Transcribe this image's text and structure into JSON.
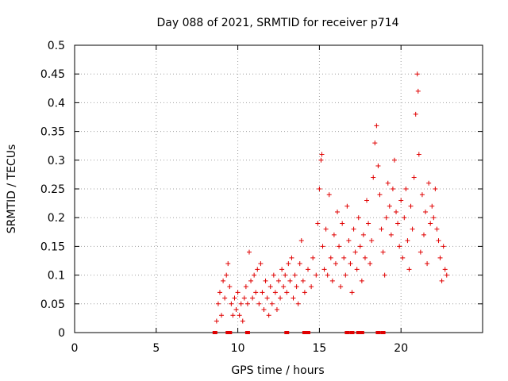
{
  "chart_data": {
    "type": "scatter",
    "title": "Day 088 of 2021, SRMTID for receiver p714",
    "xlabel": "GPS time / hours",
    "ylabel": "SRMTID / TECUs",
    "xlim": [
      0,
      25
    ],
    "ylim": [
      0,
      0.5
    ],
    "x_ticks": [
      0,
      5,
      10,
      15,
      20
    ],
    "x_tick_labels": [
      "0",
      "5",
      "10",
      "15",
      "20"
    ],
    "y_ticks": [
      0,
      0.05,
      0.1,
      0.15,
      0.2,
      0.25,
      0.3,
      0.35,
      0.4,
      0.45,
      0.5
    ],
    "y_tick_labels": [
      "0",
      "0.05",
      "0.1",
      "0.15",
      "0.2",
      "0.25",
      "0.3",
      "0.35",
      "0.4",
      "0.45",
      "0.5"
    ],
    "grid": true,
    "marker": "+",
    "color": "#e00000",
    "series": [
      {
        "name": "SRMTID",
        "points": [
          [
            8.7,
            0.02
          ],
          [
            8.8,
            0.05
          ],
          [
            8.9,
            0.07
          ],
          [
            9.0,
            0.03
          ],
          [
            9.1,
            0.09
          ],
          [
            9.2,
            0.06
          ],
          [
            9.3,
            0.1
          ],
          [
            9.4,
            0.12
          ],
          [
            9.5,
            0.08
          ],
          [
            9.6,
            0.05
          ],
          [
            9.7,
            0.03
          ],
          [
            9.8,
            0.06
          ],
          [
            9.9,
            0.04
          ],
          [
            10.0,
            0.07
          ],
          [
            10.1,
            0.03
          ],
          [
            10.2,
            0.05
          ],
          [
            10.3,
            0.02
          ],
          [
            10.4,
            0.06
          ],
          [
            10.5,
            0.08
          ],
          [
            10.6,
            0.05
          ],
          [
            10.7,
            0.14
          ],
          [
            10.8,
            0.09
          ],
          [
            10.9,
            0.06
          ],
          [
            11.0,
            0.1
          ],
          [
            11.1,
            0.07
          ],
          [
            11.2,
            0.11
          ],
          [
            11.3,
            0.05
          ],
          [
            11.4,
            0.12
          ],
          [
            11.5,
            0.07
          ],
          [
            11.6,
            0.04
          ],
          [
            11.7,
            0.09
          ],
          [
            11.8,
            0.06
          ],
          [
            11.9,
            0.03
          ],
          [
            12.0,
            0.08
          ],
          [
            12.1,
            0.05
          ],
          [
            12.2,
            0.1
          ],
          [
            12.3,
            0.07
          ],
          [
            12.4,
            0.04
          ],
          [
            12.5,
            0.09
          ],
          [
            12.6,
            0.06
          ],
          [
            12.7,
            0.11
          ],
          [
            12.8,
            0.08
          ],
          [
            12.9,
            0.1
          ],
          [
            13.0,
            0.07
          ],
          [
            13.1,
            0.12
          ],
          [
            13.2,
            0.09
          ],
          [
            13.3,
            0.13
          ],
          [
            13.4,
            0.06
          ],
          [
            13.5,
            0.1
          ],
          [
            13.6,
            0.08
          ],
          [
            13.7,
            0.05
          ],
          [
            13.8,
            0.12
          ],
          [
            13.9,
            0.16
          ],
          [
            14.0,
            0.09
          ],
          [
            14.1,
            0.07
          ],
          [
            14.3,
            0.11
          ],
          [
            14.5,
            0.08
          ],
          [
            14.6,
            0.13
          ],
          [
            14.8,
            0.1
          ],
          [
            14.9,
            0.19
          ],
          [
            15.0,
            0.25
          ],
          [
            15.1,
            0.3
          ],
          [
            15.15,
            0.31
          ],
          [
            15.2,
            0.15
          ],
          [
            15.3,
            0.11
          ],
          [
            15.4,
            0.18
          ],
          [
            15.5,
            0.1
          ],
          [
            15.6,
            0.24
          ],
          [
            15.7,
            0.13
          ],
          [
            15.8,
            0.09
          ],
          [
            15.9,
            0.17
          ],
          [
            16.0,
            0.12
          ],
          [
            16.1,
            0.21
          ],
          [
            16.2,
            0.15
          ],
          [
            16.3,
            0.08
          ],
          [
            16.4,
            0.19
          ],
          [
            16.5,
            0.13
          ],
          [
            16.6,
            0.1
          ],
          [
            16.7,
            0.22
          ],
          [
            16.8,
            0.16
          ],
          [
            16.9,
            0.12
          ],
          [
            17.0,
            0.07
          ],
          [
            17.1,
            0.18
          ],
          [
            17.2,
            0.14
          ],
          [
            17.3,
            0.11
          ],
          [
            17.4,
            0.2
          ],
          [
            17.5,
            0.15
          ],
          [
            17.6,
            0.09
          ],
          [
            17.7,
            0.17
          ],
          [
            17.8,
            0.13
          ],
          [
            17.9,
            0.23
          ],
          [
            18.0,
            0.19
          ],
          [
            18.1,
            0.12
          ],
          [
            18.2,
            0.16
          ],
          [
            18.3,
            0.27
          ],
          [
            18.4,
            0.33
          ],
          [
            18.5,
            0.36
          ],
          [
            18.6,
            0.29
          ],
          [
            18.7,
            0.24
          ],
          [
            18.8,
            0.18
          ],
          [
            18.9,
            0.14
          ],
          [
            19.0,
            0.1
          ],
          [
            19.1,
            0.2
          ],
          [
            19.2,
            0.26
          ],
          [
            19.3,
            0.22
          ],
          [
            19.4,
            0.17
          ],
          [
            19.5,
            0.25
          ],
          [
            19.6,
            0.3
          ],
          [
            19.7,
            0.21
          ],
          [
            19.8,
            0.19
          ],
          [
            19.9,
            0.15
          ],
          [
            20.0,
            0.23
          ],
          [
            20.1,
            0.13
          ],
          [
            20.2,
            0.2
          ],
          [
            20.3,
            0.25
          ],
          [
            20.4,
            0.16
          ],
          [
            20.5,
            0.11
          ],
          [
            20.6,
            0.22
          ],
          [
            20.7,
            0.18
          ],
          [
            20.8,
            0.27
          ],
          [
            20.9,
            0.38
          ],
          [
            21.0,
            0.45
          ],
          [
            21.05,
            0.42
          ],
          [
            21.1,
            0.31
          ],
          [
            21.2,
            0.14
          ],
          [
            21.3,
            0.24
          ],
          [
            21.4,
            0.17
          ],
          [
            21.5,
            0.21
          ],
          [
            21.6,
            0.12
          ],
          [
            21.7,
            0.26
          ],
          [
            21.8,
            0.19
          ],
          [
            21.9,
            0.22
          ],
          [
            22.0,
            0.2
          ],
          [
            22.1,
            0.25
          ],
          [
            22.2,
            0.18
          ],
          [
            22.3,
            0.16
          ],
          [
            22.4,
            0.13
          ],
          [
            22.5,
            0.09
          ],
          [
            22.6,
            0.15
          ],
          [
            22.7,
            0.11
          ],
          [
            22.8,
            0.1
          ]
        ]
      }
    ],
    "zero_flags_x": [
      8.6,
      9.4,
      9.5,
      10.6,
      13.0,
      14.1,
      14.3,
      16.7,
      17.0,
      17.4,
      17.6,
      18.6,
      18.9
    ]
  }
}
